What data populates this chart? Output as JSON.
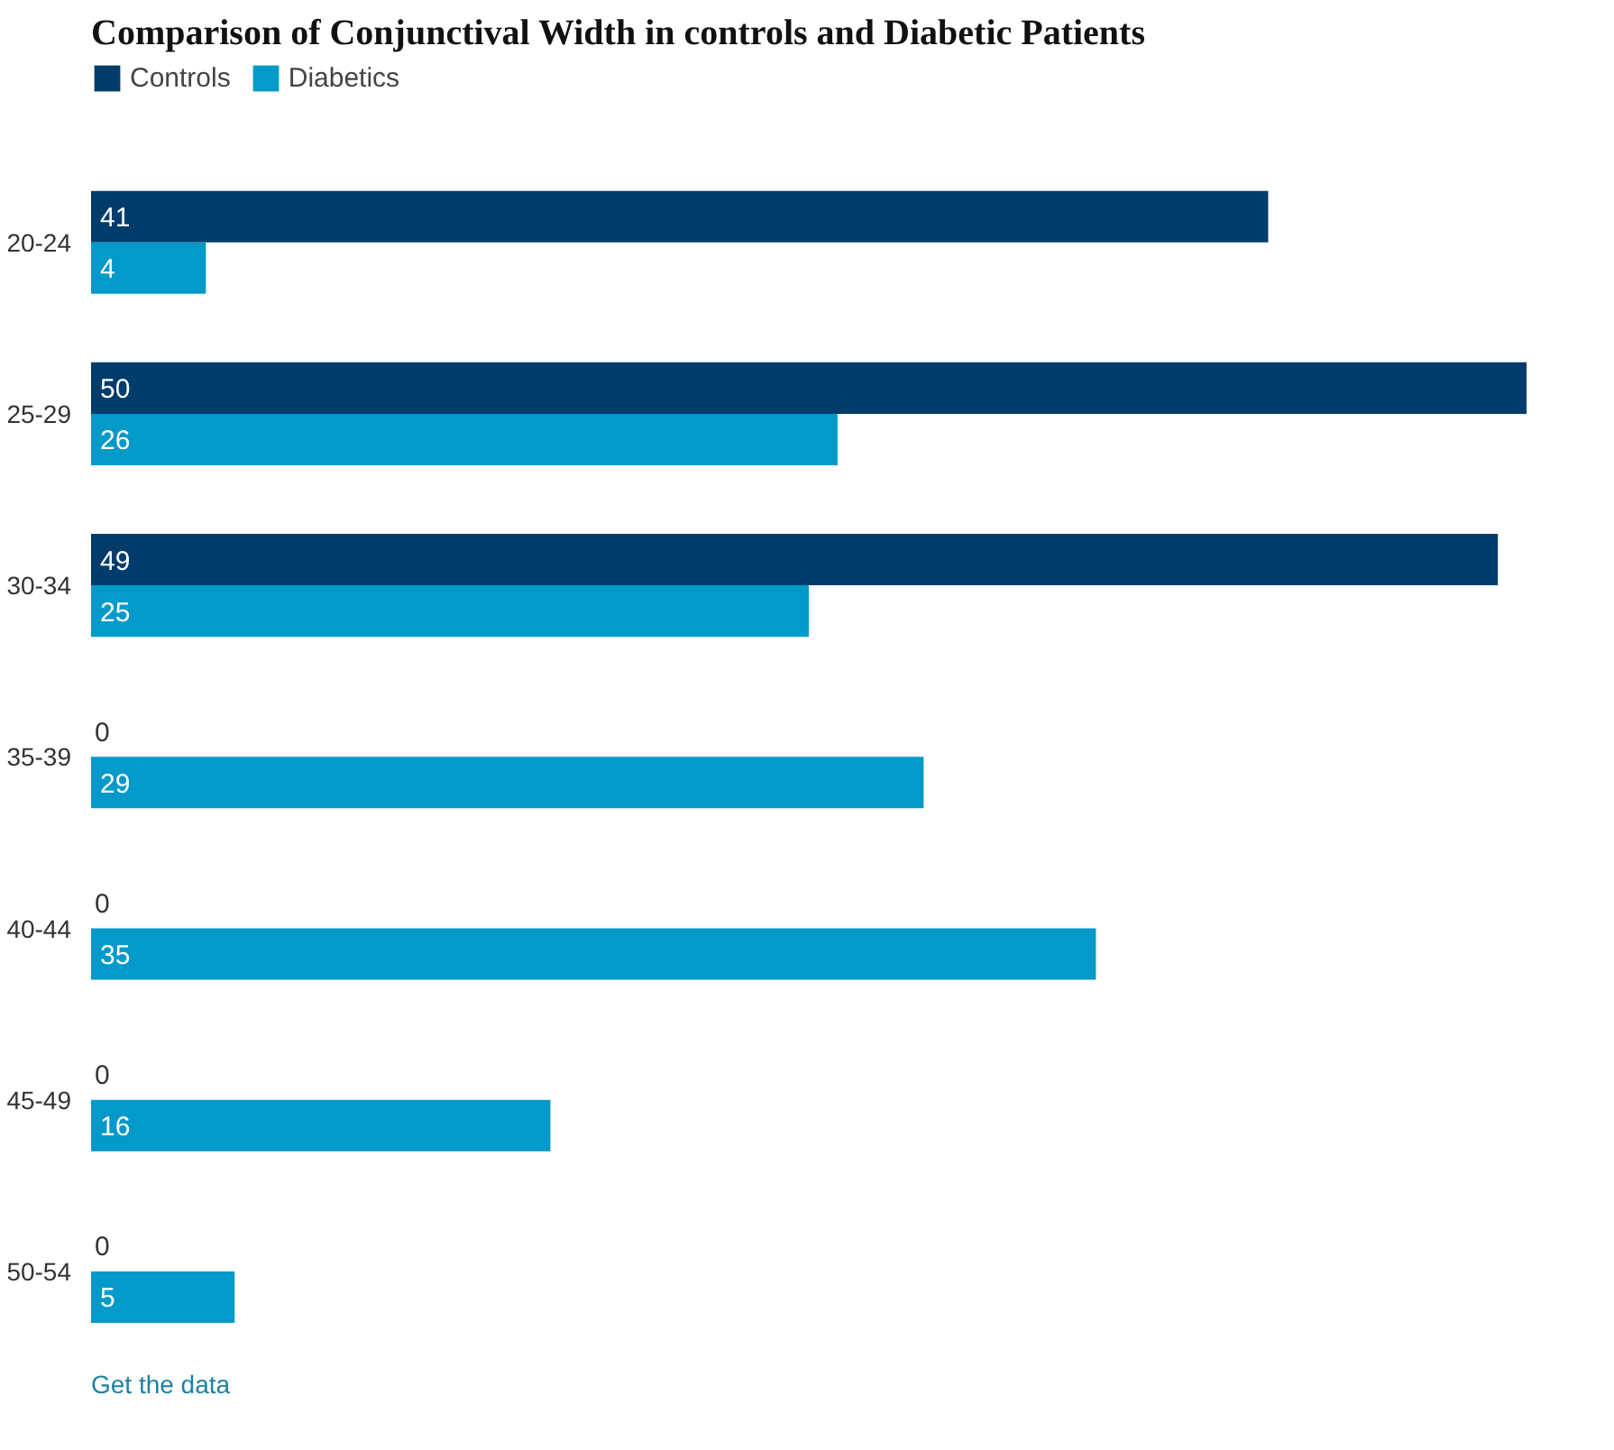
{
  "chart_data": {
    "type": "bar",
    "orientation": "horizontal",
    "title": "Comparison of Conjunctival Width in controls and Diabetic Patients",
    "categories": [
      "20-24",
      "25-29",
      "30-34",
      "35-39",
      "40-44",
      "45-49",
      "50-54"
    ],
    "series": [
      {
        "name": "Controls",
        "color": "#013c6b",
        "values": [
          41,
          50,
          49,
          0,
          0,
          0,
          0
        ]
      },
      {
        "name": "Diabetics",
        "color": "#0399c9",
        "values": [
          4,
          26,
          25,
          29,
          35,
          16,
          5
        ]
      }
    ],
    "data_labels": true,
    "legend": "top left",
    "grid": false,
    "annotations": [
      "Get the data"
    ]
  }
}
